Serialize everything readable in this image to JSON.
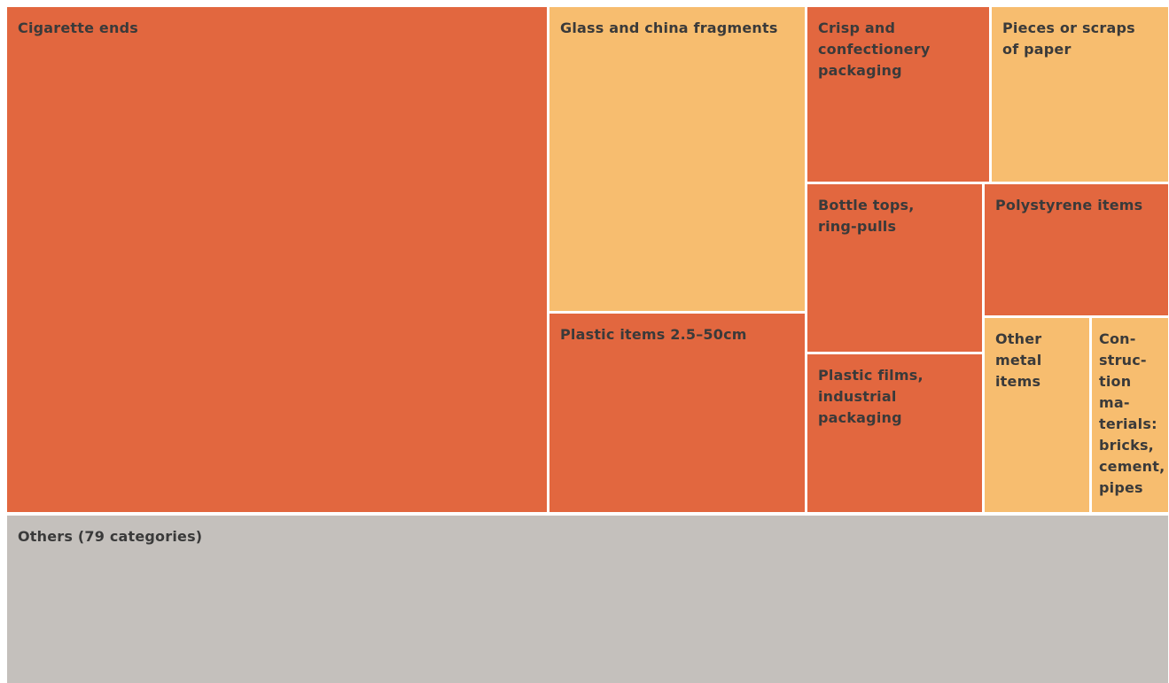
{
  "chart_data": {
    "type": "treemap",
    "colors": {
      "dark": "#e2673f",
      "light": "#f7bd6f",
      "other": "#c4c0bc",
      "text": "#3a3a3a",
      "gap": "#ffffff"
    },
    "items": [
      {
        "label": "Cigarette ends",
        "color": "dark"
      },
      {
        "label": "Glass and china fragments",
        "color": "light"
      },
      {
        "label": "Plastic items 2.5–50cm",
        "color": "dark"
      },
      {
        "label": "Crisp and confectionery packaging",
        "color": "dark"
      },
      {
        "label": "Pieces or scraps of paper",
        "color": "light"
      },
      {
        "label": "Bottle tops, ring-pulls",
        "color": "dark"
      },
      {
        "label": "Plastic films, industrial packaging",
        "color": "dark"
      },
      {
        "label": "Polystyrene items",
        "color": "dark"
      },
      {
        "label": "Other metal items",
        "color": "light"
      },
      {
        "label": "Con-struc-tion ma-terials: bricks, cement, pipes",
        "color": "light"
      },
      {
        "label": "Others (79 categories)",
        "color": "other"
      }
    ]
  }
}
